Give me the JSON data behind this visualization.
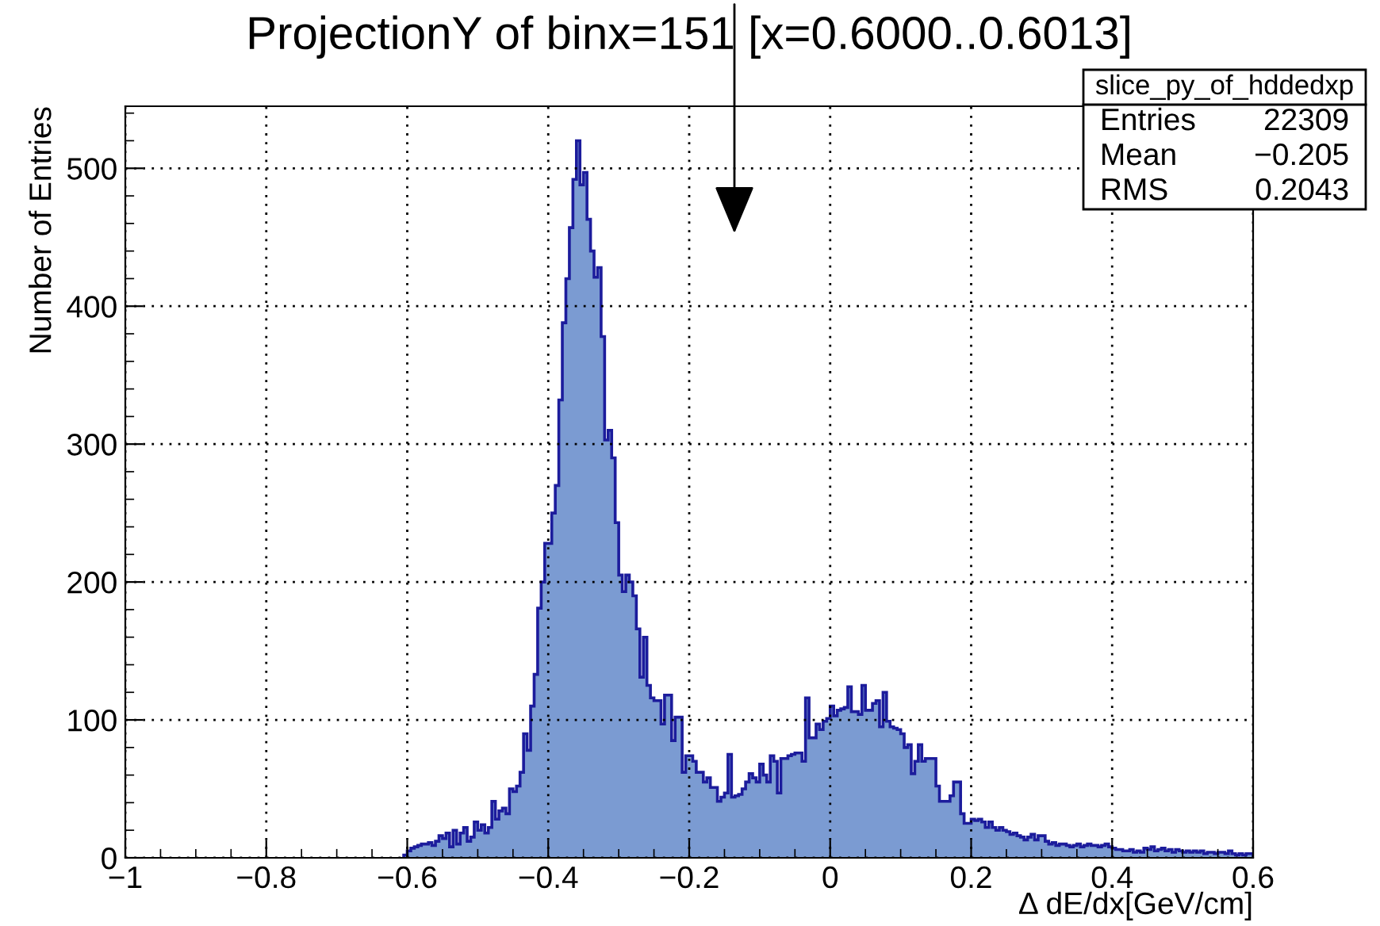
{
  "chart_data": {
    "type": "histogram",
    "title": "ProjectionY of binx=151 [x=0.6000..0.6013]",
    "xlabel": "Δ dE/dx[GeV/cm]",
    "ylabel": "Number of Entries",
    "bins": [
      -0.605,
      -0.6,
      -0.595,
      -0.59,
      -0.585,
      -0.58,
      -0.575,
      -0.57,
      -0.565,
      -0.56,
      -0.555,
      -0.55,
      -0.545,
      -0.54,
      -0.535,
      -0.53,
      -0.525,
      -0.52,
      -0.515,
      -0.51,
      -0.505,
      -0.5,
      -0.495,
      -0.49,
      -0.485,
      -0.48,
      -0.475,
      -0.47,
      -0.465,
      -0.46,
      -0.455,
      -0.45,
      -0.445,
      -0.44,
      -0.435,
      -0.43,
      -0.425,
      -0.42,
      -0.415,
      -0.41,
      -0.405,
      -0.4,
      -0.395,
      -0.39,
      -0.385,
      -0.38,
      -0.375,
      -0.37,
      -0.365,
      -0.36,
      -0.355,
      -0.35,
      -0.345,
      -0.34,
      -0.335,
      -0.33,
      -0.325,
      -0.32,
      -0.315,
      -0.31,
      -0.305,
      -0.3,
      -0.295,
      -0.29,
      -0.285,
      -0.28,
      -0.275,
      -0.27,
      -0.265,
      -0.26,
      -0.255,
      -0.25,
      -0.245,
      -0.24,
      -0.235,
      -0.23,
      -0.225,
      -0.22,
      -0.215,
      -0.21,
      -0.205,
      -0.2,
      -0.195,
      -0.19,
      -0.185,
      -0.18,
      -0.175,
      -0.17,
      -0.165,
      -0.16,
      -0.155,
      -0.15,
      -0.145,
      -0.14,
      -0.135,
      -0.13,
      -0.125,
      -0.12,
      -0.115,
      -0.11,
      -0.105,
      -0.1,
      -0.095,
      -0.09,
      -0.085,
      -0.08,
      -0.075,
      -0.07,
      -0.065,
      -0.06,
      -0.055,
      -0.05,
      -0.045,
      -0.04,
      -0.035,
      -0.03,
      -0.025,
      -0.02,
      -0.015,
      -0.01,
      -0.005,
      0.0,
      0.005,
      0.01,
      0.015,
      0.02,
      0.025,
      0.03,
      0.035,
      0.04,
      0.045,
      0.05,
      0.055,
      0.06,
      0.065,
      0.07,
      0.075,
      0.08,
      0.085,
      0.09,
      0.095,
      0.1,
      0.105,
      0.11,
      0.115,
      0.12,
      0.125,
      0.13,
      0.135,
      0.14,
      0.145,
      0.15,
      0.155,
      0.16,
      0.165,
      0.17,
      0.175,
      0.18,
      0.185,
      0.19,
      0.195,
      0.2,
      0.205,
      0.21,
      0.215,
      0.22,
      0.225,
      0.23,
      0.235,
      0.24,
      0.245,
      0.25,
      0.255,
      0.26,
      0.265,
      0.27,
      0.275,
      0.28,
      0.285,
      0.29,
      0.295,
      0.3,
      0.305,
      0.31,
      0.315,
      0.32,
      0.325,
      0.33,
      0.335,
      0.34,
      0.345,
      0.35,
      0.355,
      0.36,
      0.365,
      0.37,
      0.375,
      0.38,
      0.385,
      0.39,
      0.395,
      0.4,
      0.405,
      0.41,
      0.415,
      0.42,
      0.425,
      0.43,
      0.435,
      0.44,
      0.445,
      0.45,
      0.455,
      0.46,
      0.465,
      0.47,
      0.475,
      0.48,
      0.485,
      0.49,
      0.495,
      0.5,
      0.505,
      0.51,
      0.515,
      0.52,
      0.525,
      0.53,
      0.535,
      0.54,
      0.545,
      0.55,
      0.555,
      0.56,
      0.565,
      0.57,
      0.575,
      0.58,
      0.585,
      0.59,
      0.595,
      0.6
    ],
    "values": [
      2,
      5,
      7,
      8,
      9,
      10,
      10,
      11,
      9,
      12,
      16,
      14,
      18,
      8,
      20,
      10,
      18,
      22,
      12,
      15,
      26,
      20,
      24,
      18,
      22,
      41,
      28,
      34,
      36,
      32,
      50,
      48,
      52,
      62,
      90,
      78,
      110,
      133,
      181,
      200,
      228,
      228,
      250,
      270,
      332,
      388,
      420,
      457,
      492,
      520,
      488,
      497,
      463,
      440,
      421,
      428,
      378,
      303,
      310,
      290,
      243,
      205,
      193,
      205,
      200,
      190,
      166,
      131,
      160,
      125,
      116,
      114,
      114,
      97,
      118,
      118,
      85,
      102,
      102,
      62,
      74,
      74,
      70,
      62,
      62,
      55,
      58,
      51,
      51,
      41,
      44,
      47,
      75,
      44,
      45,
      46,
      50,
      55,
      61,
      58,
      55,
      68,
      60,
      55,
      74,
      70,
      47,
      72,
      72,
      74,
      75,
      76,
      76,
      70,
      116,
      87,
      87,
      97,
      93,
      99,
      101,
      110,
      103,
      107,
      108,
      109,
      124,
      106,
      106,
      104,
      125,
      107,
      107,
      112,
      114,
      95,
      120,
      99,
      95,
      94,
      93,
      90,
      80,
      82,
      61,
      70,
      82,
      70,
      72,
      72,
      72,
      52,
      41,
      41,
      41,
      45,
      55,
      55,
      32,
      25,
      25,
      28,
      27,
      28,
      26,
      22,
      26,
      22,
      20,
      22,
      20,
      19,
      17,
      18,
      16,
      15,
      13,
      15,
      17,
      13,
      16,
      16,
      12,
      10,
      11,
      9,
      10,
      10,
      9,
      8,
      9,
      10,
      8,
      9,
      10,
      9,
      9,
      8,
      9,
      10,
      8,
      7,
      6,
      6,
      5,
      5,
      6,
      4,
      5,
      4,
      7,
      6,
      8,
      5,
      6,
      7,
      5,
      6,
      4,
      6,
      5,
      4,
      5,
      4,
      5,
      4,
      5,
      3,
      4,
      4,
      3,
      4,
      4,
      3,
      5,
      3,
      2,
      3,
      2,
      3,
      3
    ],
    "color": "#7b9bd2",
    "xlim": [
      -1,
      0.6
    ],
    "xticks": [
      {
        "value": -1,
        "label": "−1"
      },
      {
        "value": -0.8,
        "label": "−0.8"
      },
      {
        "value": -0.6,
        "label": "−0.6"
      },
      {
        "value": -0.4,
        "label": "−0.4"
      },
      {
        "value": -0.2,
        "label": "−0.2"
      },
      0,
      0.2,
      0.4,
      0.6
    ],
    "ylim": [
      0,
      545
    ],
    "yticks": [
      0,
      100,
      200,
      300,
      400,
      500
    ],
    "grid": true,
    "annotations": [
      "slice_py_of_hddedxp",
      "Entries",
      "22309",
      "Mean",
      "−0.205",
      "RMS",
      "0.2043"
    ]
  }
}
